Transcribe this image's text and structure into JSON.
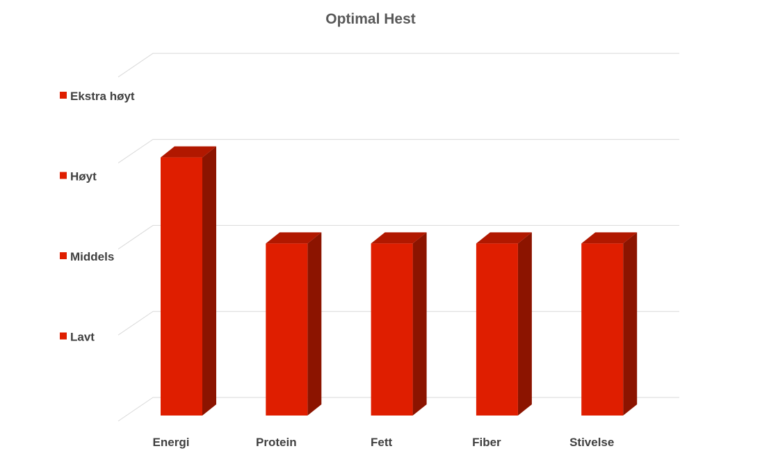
{
  "chart_data": {
    "type": "bar",
    "title": "Optimal Hest",
    "xlabel": "",
    "ylabel": "",
    "categories": [
      "Energi",
      "Protein",
      "Fett",
      "Fiber",
      "Stivelse"
    ],
    "values": [
      3,
      2,
      2,
      2,
      2
    ],
    "ylim": [
      0,
      4
    ],
    "level_labels": [
      "Lavt",
      "Middels",
      "Høyt",
      "Ekstra høyt"
    ],
    "legend_position": "left",
    "grid": true,
    "three_d": true,
    "colors": {
      "front": "#df1e00",
      "top": "#b11800",
      "side": "#8c1400",
      "grid": "#d9d9d9",
      "text": "#404040",
      "title": "#595959"
    }
  }
}
